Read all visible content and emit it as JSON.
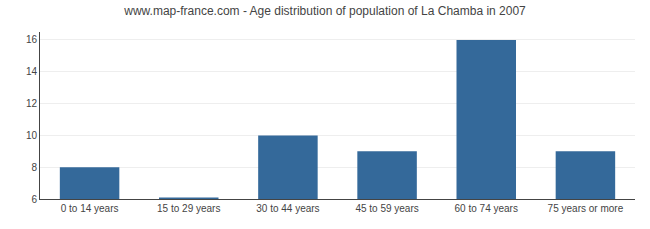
{
  "chart_data": {
    "type": "bar",
    "title": "www.map-france.com - Age distribution of population of La Chamba in 2007",
    "categories": [
      "0 to 14 years",
      "15 to 29 years",
      "30 to 44 years",
      "45 to 59 years",
      "60 to 74 years",
      "75 years or more"
    ],
    "values": [
      8,
      6.1,
      10,
      9,
      16,
      9
    ],
    "color": "#34699a",
    "ylim": [
      6,
      16.5
    ],
    "yticks": [
      6,
      8,
      10,
      12,
      14,
      16
    ],
    "grid": true
  }
}
